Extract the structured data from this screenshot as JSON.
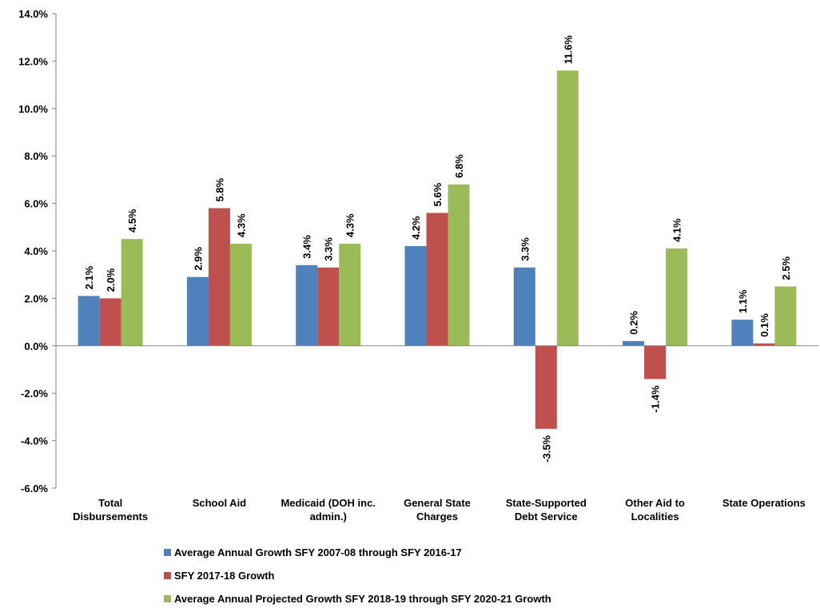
{
  "chart_data": {
    "type": "bar",
    "categories": [
      "Total Disbursements",
      "School Aid",
      "Medicaid (DOH inc. admin.)",
      "General State Charges",
      "State-Supported Debt Service",
      "Other Aid to Localities",
      "State Operations"
    ],
    "series": [
      {
        "name": "Average Annual Growth SFY 2007-08 through SFY 2016-17",
        "color": "#4f81bd",
        "values": [
          2.1,
          2.9,
          3.4,
          4.2,
          3.3,
          0.2,
          1.1
        ],
        "value_labels": [
          "2.1%",
          "2.9%",
          "3.4%",
          "4.2%",
          "3.3%",
          "0.2%",
          "1.1%"
        ]
      },
      {
        "name": "SFY 2017-18 Growth",
        "color": "#c0504d",
        "values": [
          2.0,
          5.8,
          3.3,
          5.6,
          -3.5,
          -1.4,
          0.1
        ],
        "value_labels": [
          "2.0%",
          "5.8%",
          "3.3%",
          "5.6%",
          "-3.5%",
          "-1.4%",
          "0.1%"
        ]
      },
      {
        "name": "Average Annual Projected Growth SFY 2018-19 through SFY 2020-21 Growth",
        "color": "#9bbb59",
        "values": [
          4.5,
          4.3,
          4.3,
          6.8,
          11.6,
          4.1,
          2.5
        ],
        "value_labels": [
          "4.5%",
          "4.3%",
          "4.3%",
          "6.8%",
          "11.6%",
          "4.1%",
          "2.5%"
        ]
      }
    ],
    "ylim": [
      -6,
      14
    ],
    "yticks": [
      {
        "value": -6,
        "label": "-6.0%"
      },
      {
        "value": -4,
        "label": "-4.0%"
      },
      {
        "value": -2,
        "label": "-2.0%"
      },
      {
        "value": 0,
        "label": "0.0%"
      },
      {
        "value": 2,
        "label": "2.0%"
      },
      {
        "value": 4,
        "label": "4.0%"
      },
      {
        "value": 6,
        "label": "6.0%"
      },
      {
        "value": 8,
        "label": "8.0%"
      },
      {
        "value": 10,
        "label": "10.0%"
      },
      {
        "value": 12,
        "label": "12.0%"
      },
      {
        "value": 14,
        "label": "14.0%"
      }
    ],
    "grid": false
  }
}
